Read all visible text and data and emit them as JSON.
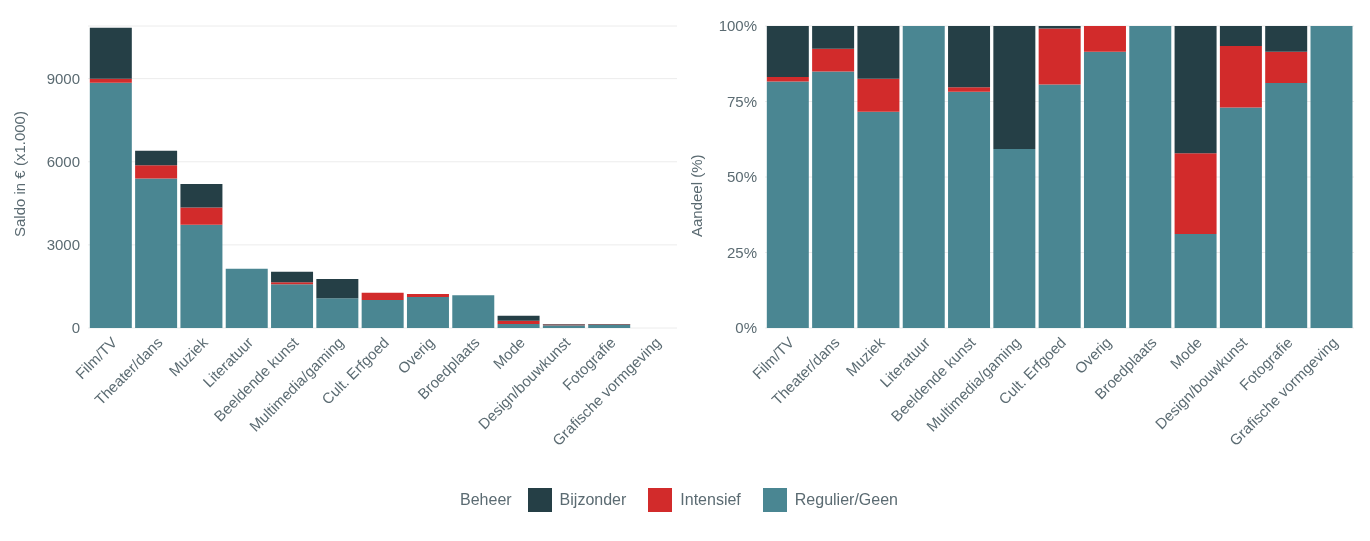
{
  "chart_data": [
    {
      "type": "bar",
      "ylabel": "Saldo in € (x1.000)",
      "categories": [
        "Film/TV",
        "Theater/dans",
        "Muziek",
        "Literatuur",
        "Beeldende kunst",
        "Multimedia/gaming",
        "Cult. Erfgoed",
        "Overig",
        "Broedplaats",
        "Mode",
        "Design/bouwkunst",
        "Fotografie",
        "Grafische vormgeving"
      ],
      "stacked": true,
      "ylim": [
        0,
        10900
      ],
      "yticks": [
        0,
        3000,
        6000,
        9000
      ],
      "grid": "y",
      "legend": "bottom",
      "legend_title": "Beheer",
      "series": [
        {
          "name": "Regulier/Geen",
          "color": "#4a8692",
          "values": [
            8850,
            5400,
            3730,
            2140,
            1580,
            1070,
            1010,
            1120,
            1180,
            140,
            100,
            110,
            null
          ]
        },
        {
          "name": "Intensief",
          "color": "#d22b2b",
          "values": [
            150,
            470,
            620,
            0,
            70,
            0,
            260,
            110,
            0,
            120,
            30,
            20,
            0
          ]
        },
        {
          "name": "Bijzonder",
          "color": "#253f46",
          "values": [
            1840,
            530,
            850,
            0,
            380,
            700,
            null,
            0,
            0,
            180,
            10,
            10,
            0
          ]
        }
      ]
    },
    {
      "type": "bar",
      "ylabel": "Aandeel (%)",
      "categories": [
        "Film/TV",
        "Theater/dans",
        "Muziek",
        "Literatuur",
        "Beeldende kunst",
        "Multimedia/gaming",
        "Cult. Erfgoed",
        "Overig",
        "Broedplaats",
        "Mode",
        "Design/bouwkunst",
        "Fotografie",
        "Grafische vormgeving"
      ],
      "stacked": true,
      "ylim": [
        0,
        100
      ],
      "yticks": [
        {
          "value": 0,
          "label": "0%"
        },
        {
          "value": 25,
          "label": "25%"
        },
        {
          "value": 50,
          "label": "50%"
        },
        {
          "value": 75,
          "label": "75%"
        },
        {
          "value": 100,
          "label": "100%"
        }
      ],
      "grid": "y",
      "series": [
        {
          "color": "#4a8692",
          "values": [
            81.6,
            84.9,
            71.6,
            100,
            78.2,
            59.3,
            80.6,
            91.5,
            100,
            31.1,
            73.0,
            81.1,
            100
          ]
        },
        {
          "color": "#d22b2b",
          "values": [
            1.5,
            7.6,
            10.9,
            0,
            1.5,
            0,
            18.6,
            8.5,
            0,
            26.8,
            20.4,
            10.4,
            0
          ]
        },
        {
          "color": "#253f46",
          "values": [
            16.9,
            7.5,
            17.5,
            0,
            20.3,
            40.7,
            0.8,
            0,
            0,
            42.1,
            6.6,
            8.5,
            0
          ]
        }
      ]
    }
  ]
}
